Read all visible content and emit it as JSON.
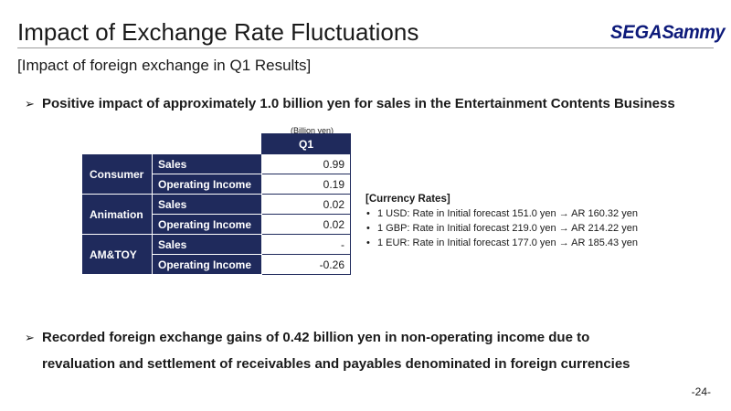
{
  "header": {
    "title": "Impact of Exchange Rate Fluctuations",
    "logo_sega": "SEGA",
    "logo_sammy": "Sammy",
    "subtitle": "[Impact of foreign exchange in Q1 Results]"
  },
  "bullets": {
    "arrow": "➢",
    "first": "Positive impact of approximately 1.0 billion yen for sales in the Entertainment Contents Business",
    "second_line1": "Recorded foreign exchange gains of 0.42 billion yen in non-operating income due to",
    "second_line2": "revaluation and settlement of receivables and payables denominated in foreign currencies"
  },
  "table": {
    "unit": "(Billion yen)",
    "column_header": "Q1",
    "groups": [
      {
        "name": "Consumer",
        "rows": [
          {
            "label": "Sales",
            "value": "0.99"
          },
          {
            "label": "Operating Income",
            "value": "0.19"
          }
        ]
      },
      {
        "name": "Animation",
        "rows": [
          {
            "label": "Sales",
            "value": "0.02"
          },
          {
            "label": "Operating Income",
            "value": "0.02"
          }
        ]
      },
      {
        "name": "AM&TOY",
        "rows": [
          {
            "label": "Sales",
            "value": "-"
          },
          {
            "label": "Operating Income",
            "value": "-0.26"
          }
        ]
      }
    ]
  },
  "currency_rates": {
    "heading": "[Currency Rates]",
    "items": [
      "1 USD: Rate in Initial forecast 151.0 yen → AR 160.32 yen",
      "1 GBP: Rate in Initial forecast 219.0 yen → AR 214.22 yen",
      "1 EUR: Rate in Initial forecast 177.0 yen → AR 185.43 yen"
    ]
  },
  "page_number": "-24-",
  "colors": {
    "table_header": "#1f2a5c",
    "logo": "#0d1a7a"
  }
}
